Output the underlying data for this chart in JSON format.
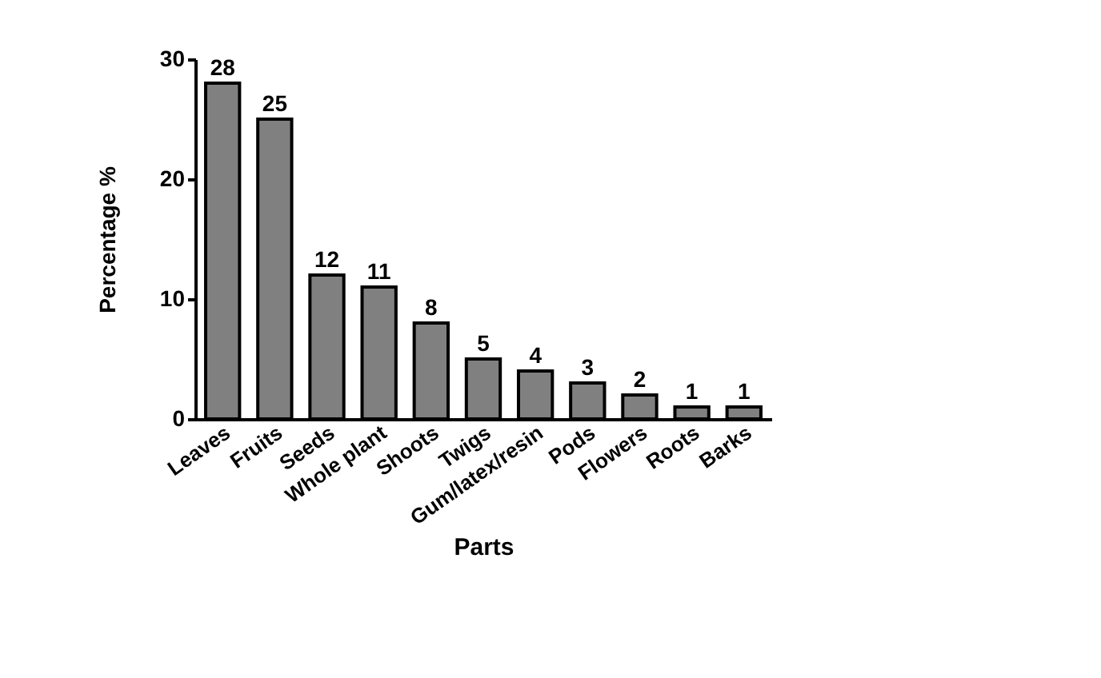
{
  "chart_data": {
    "type": "bar",
    "xlabel": "Parts",
    "ylabel": "Percentage %",
    "categories": [
      "Leaves",
      "Fruits",
      "Seeds",
      "Whole plant",
      "Shoots",
      "Twigs",
      "Gum/latex/resin",
      "Pods",
      "Flowers",
      "Roots",
      "Barks"
    ],
    "values": [
      28,
      25,
      12,
      11,
      8,
      5,
      4,
      3,
      2,
      1,
      1
    ],
    "color": "#808080",
    "ylim": [
      0,
      30
    ],
    "yticks": [
      0,
      10,
      20,
      30
    ],
    "data_labels": true,
    "grid": false
  }
}
